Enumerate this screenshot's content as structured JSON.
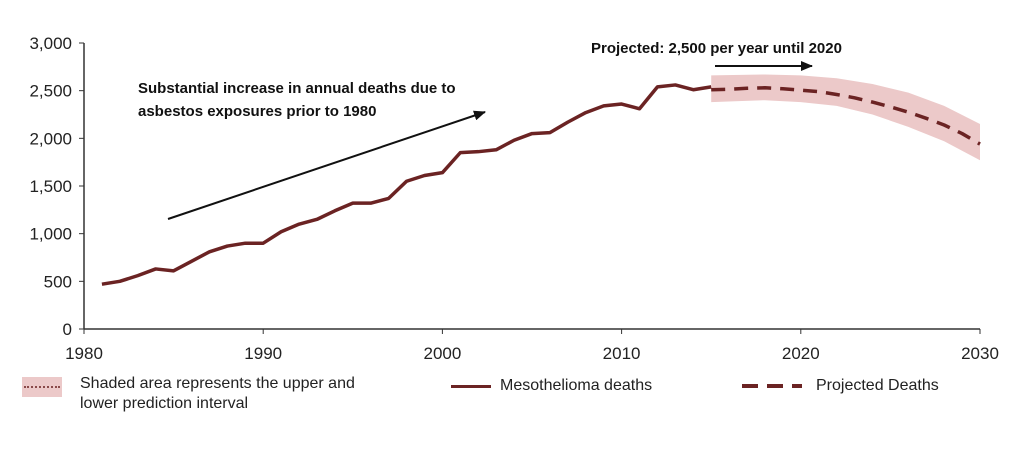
{
  "chart_data": {
    "type": "line",
    "xlim": [
      1980,
      2030
    ],
    "ylim": [
      0,
      3000
    ],
    "x_ticks": [
      "1980",
      "1990",
      "2000",
      "2010",
      "2020",
      "2030"
    ],
    "y_ticks": [
      "0",
      "500",
      "1,000",
      "1,500",
      "2,000",
      "2,500",
      "3,000"
    ],
    "series": [
      {
        "name": "Mesothelioma deaths",
        "style": "solid",
        "x": [
          1981,
          1982,
          1983,
          1984,
          1985,
          1986,
          1987,
          1988,
          1989,
          1990,
          1991,
          1992,
          1993,
          1994,
          1995,
          1996,
          1997,
          1998,
          1999,
          2000,
          2001,
          2002,
          2003,
          2004,
          2005,
          2006,
          2007,
          2008,
          2009,
          2010,
          2011,
          2012,
          2013,
          2014,
          2015
        ],
        "y": [
          470,
          500,
          560,
          630,
          610,
          710,
          810,
          870,
          900,
          900,
          1020,
          1100,
          1150,
          1240,
          1320,
          1320,
          1370,
          1550,
          1610,
          1640,
          1850,
          1860,
          1880,
          1980,
          2050,
          2060,
          2170,
          2270,
          2340,
          2360,
          2310,
          2540,
          2560,
          2510,
          2540
        ]
      },
      {
        "name": "Projected Deaths",
        "style": "dashed",
        "x": [
          2015,
          2016,
          2017,
          2018,
          2019,
          2020,
          2021,
          2022,
          2023,
          2024,
          2025,
          2026,
          2027,
          2028,
          2029,
          2030
        ],
        "y": [
          2510,
          2515,
          2525,
          2530,
          2520,
          2505,
          2490,
          2460,
          2425,
          2380,
          2330,
          2275,
          2210,
          2140,
          2050,
          1940
        ]
      }
    ],
    "prediction_interval": {
      "name": "Shaded area represents the upper and lower prediction interval",
      "x": [
        2015,
        2018,
        2020,
        2022,
        2024,
        2026,
        2028,
        2030
      ],
      "upper": [
        2660,
        2670,
        2660,
        2630,
        2570,
        2480,
        2340,
        2150
      ],
      "lower": [
        2380,
        2400,
        2380,
        2340,
        2250,
        2120,
        1970,
        1770
      ]
    },
    "annotations": {
      "increase_line1": "Substantial increase in annual deaths due to",
      "increase_line2": "asbestos exposures prior to 1980",
      "projected": "Projected: 2,500 per year until 2020"
    },
    "colors": {
      "series": "#6b2323",
      "band": "#ecc9c9",
      "arrow": "#111111",
      "axis": "#333333"
    }
  },
  "legend": {
    "band_line1": "Shaded area represents the upper and",
    "band_line2": "lower prediction interval",
    "actual": "Mesothelioma deaths",
    "projected": "Projected Deaths"
  }
}
